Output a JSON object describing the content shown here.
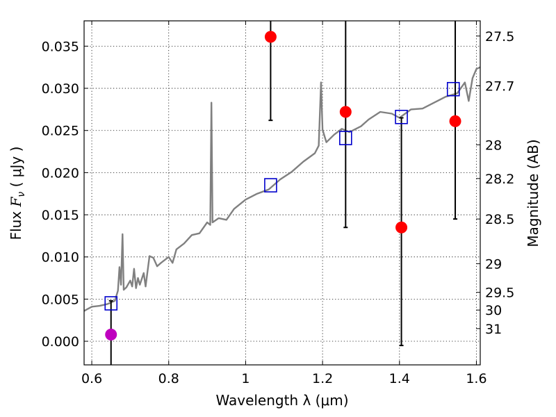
{
  "chart_data": {
    "type": "scatter",
    "xlabel": "Wavelength  λ (μm)",
    "ylabel": "Flux  F_ν  ( μJy )",
    "ylabel_parts": {
      "pre": "Flux  ",
      "sym": "F",
      "sub": "ν",
      "post": "  ( μJy )"
    },
    "right_ylabel": "Magnitude (AB)",
    "xlim": [
      0.58,
      1.61
    ],
    "ylim": [
      -0.0028,
      0.038
    ],
    "grid": true,
    "x_ticks": [
      {
        "value": 0.6,
        "label": "0.6"
      },
      {
        "value": 0.8,
        "label": "0.8"
      },
      {
        "value": 1.0,
        "label": "1"
      },
      {
        "value": 1.2,
        "label": "1.2"
      },
      {
        "value": 1.4,
        "label": "1.4"
      },
      {
        "value": 1.6,
        "label": "1.6"
      }
    ],
    "y_ticks": [
      {
        "value": 0.0,
        "label": "0.000"
      },
      {
        "value": 0.005,
        "label": "0.005"
      },
      {
        "value": 0.01,
        "label": "0.010"
      },
      {
        "value": 0.015,
        "label": "0.015"
      },
      {
        "value": 0.02,
        "label": "0.020"
      },
      {
        "value": 0.025,
        "label": "0.025"
      },
      {
        "value": 0.03,
        "label": "0.030"
      },
      {
        "value": 0.035,
        "label": "0.035"
      }
    ],
    "right_ticks": [
      {
        "flux": 0.0362,
        "label": "27.5"
      },
      {
        "flux": 0.0303,
        "label": "27.7"
      },
      {
        "flux": 0.0233,
        "label": "28"
      },
      {
        "flux": 0.0193,
        "label": "28.2"
      },
      {
        "flux": 0.0145,
        "label": "28.5"
      },
      {
        "flux": 0.0092,
        "label": "29"
      },
      {
        "flux": 0.0058,
        "label": "29.5"
      },
      {
        "flux": 0.0037,
        "label": "30"
      },
      {
        "flux": 0.0015,
        "label": "31"
      }
    ],
    "series": [
      {
        "kind": "model_spectrum",
        "color": "#808080",
        "points": [
          [
            0.58,
            0.0036
          ],
          [
            0.6,
            0.0041
          ],
          [
            0.62,
            0.0042
          ],
          [
            0.64,
            0.0044
          ],
          [
            0.66,
            0.0048
          ],
          [
            0.668,
            0.006
          ],
          [
            0.672,
            0.0088
          ],
          [
            0.676,
            0.0067
          ],
          [
            0.68,
            0.0127
          ],
          [
            0.683,
            0.0061
          ],
          [
            0.69,
            0.0064
          ],
          [
            0.7,
            0.0072
          ],
          [
            0.705,
            0.0065
          ],
          [
            0.71,
            0.0086
          ],
          [
            0.715,
            0.0063
          ],
          [
            0.72,
            0.0075
          ],
          [
            0.725,
            0.0067
          ],
          [
            0.735,
            0.0081
          ],
          [
            0.74,
            0.0065
          ],
          [
            0.75,
            0.0101
          ],
          [
            0.76,
            0.0099
          ],
          [
            0.77,
            0.0089
          ],
          [
            0.78,
            0.0093
          ],
          [
            0.8,
            0.01
          ],
          [
            0.81,
            0.0093
          ],
          [
            0.82,
            0.0109
          ],
          [
            0.84,
            0.0116
          ],
          [
            0.86,
            0.0126
          ],
          [
            0.88,
            0.0128
          ],
          [
            0.9,
            0.0141
          ],
          [
            0.908,
            0.0138
          ],
          [
            0.911,
            0.0283
          ],
          [
            0.914,
            0.0141
          ],
          [
            0.93,
            0.0146
          ],
          [
            0.95,
            0.0144
          ],
          [
            0.97,
            0.0157
          ],
          [
            1.0,
            0.0168
          ],
          [
            1.03,
            0.0175
          ],
          [
            1.06,
            0.018
          ],
          [
            1.09,
            0.0192
          ],
          [
            1.12,
            0.0201
          ],
          [
            1.15,
            0.0213
          ],
          [
            1.18,
            0.0223
          ],
          [
            1.19,
            0.0232
          ],
          [
            1.196,
            0.0307
          ],
          [
            1.2,
            0.0251
          ],
          [
            1.21,
            0.0236
          ],
          [
            1.23,
            0.0245
          ],
          [
            1.25,
            0.0252
          ],
          [
            1.27,
            0.0248
          ],
          [
            1.3,
            0.0255
          ],
          [
            1.32,
            0.0263
          ],
          [
            1.35,
            0.0272
          ],
          [
            1.38,
            0.027
          ],
          [
            1.4,
            0.0265
          ],
          [
            1.43,
            0.0275
          ],
          [
            1.46,
            0.0276
          ],
          [
            1.49,
            0.0283
          ],
          [
            1.52,
            0.029
          ],
          [
            1.55,
            0.0294
          ],
          [
            1.57,
            0.0307
          ],
          [
            1.58,
            0.0285
          ],
          [
            1.59,
            0.0312
          ],
          [
            1.6,
            0.0323
          ],
          [
            1.61,
            0.0325
          ]
        ]
      },
      {
        "kind": "model_photometry",
        "marker": "open-square",
        "color": "#0000cc",
        "points": [
          {
            "x": 0.65,
            "y": 0.0045
          },
          {
            "x": 1.065,
            "y": 0.0185
          },
          {
            "x": 1.26,
            "y": 0.0241
          },
          {
            "x": 1.405,
            "y": 0.0266
          },
          {
            "x": 1.54,
            "y": 0.0299
          }
        ]
      },
      {
        "kind": "observed_photometry",
        "marker": "filled-circle",
        "color": "#ff0000",
        "points": [
          {
            "x": 1.065,
            "y": 0.0361,
            "err_low": 0.0262,
            "err_high": 0.039
          },
          {
            "x": 1.26,
            "y": 0.0272,
            "err_low": 0.0135,
            "err_high": 0.039
          },
          {
            "x": 1.405,
            "y": 0.0135,
            "err_low": -0.0005,
            "err_high": 0.0265
          },
          {
            "x": 1.545,
            "y": 0.0261,
            "err_low": 0.0145,
            "err_high": 0.039
          }
        ]
      },
      {
        "kind": "observed_photometry_optical",
        "marker": "filled-circle",
        "color": "#bf00bf",
        "points": [
          {
            "x": 0.65,
            "y": 0.0008,
            "err_low": -0.004,
            "err_high": 0.0048
          }
        ]
      }
    ]
  }
}
